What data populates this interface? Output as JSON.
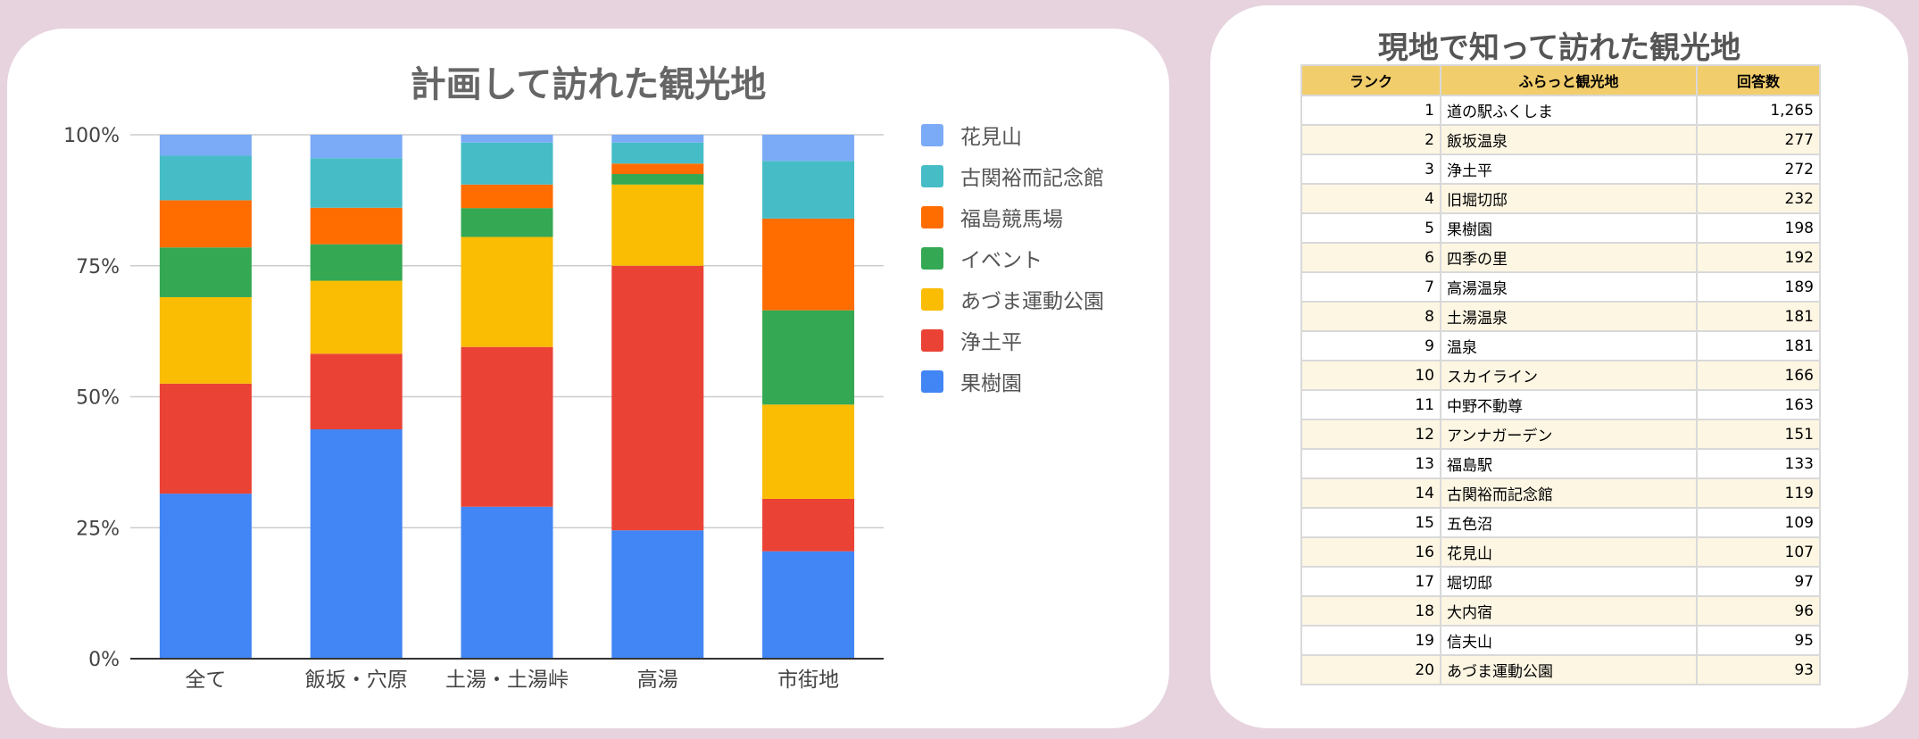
{
  "chart_data": [
    {
      "type": "bar",
      "stacked": true,
      "percent": true,
      "title": "計画して訪れた観光地",
      "categories": [
        "全て",
        "飯坂・穴原",
        "土湯・土湯峠",
        "高湯",
        "市街地"
      ],
      "yticks": [
        "0%",
        "25%",
        "50%",
        "75%",
        "100%"
      ],
      "ylim": [
        0,
        100
      ],
      "grid": true,
      "legend_position": "right",
      "series": [
        {
          "name": "果樹園",
          "color": "#4285f4",
          "values": [
            31.5,
            44,
            29,
            24.5,
            20.5
          ]
        },
        {
          "name": "浄土平",
          "color": "#ea4335",
          "values": [
            21,
            14.5,
            30.5,
            50.5,
            10
          ]
        },
        {
          "name": "あづま運動公園",
          "color": "#fbbc04",
          "values": [
            16.5,
            14,
            21,
            15.5,
            18
          ]
        },
        {
          "name": "イベント",
          "color": "#34a853",
          "values": [
            9.5,
            7,
            5.5,
            2,
            18
          ]
        },
        {
          "name": "福島競馬場",
          "color": "#ff6d01",
          "values": [
            9,
            7,
            4.5,
            2,
            17.5
          ]
        },
        {
          "name": "古関裕而記念館",
          "color": "#46bdc6",
          "values": [
            8.5,
            9.5,
            8,
            4,
            11
          ]
        },
        {
          "name": "花見山",
          "color": "#7baaf7",
          "values": [
            4,
            4.5,
            1.5,
            1.5,
            5
          ]
        }
      ]
    },
    {
      "type": "table",
      "title": "現地で知って訪れた観光地",
      "columns": [
        "ランク",
        "ふらっと観光地",
        "回答数"
      ],
      "rows": [
        {
          "rank": "1",
          "name": "道の駅ふくしま",
          "count": "1,265"
        },
        {
          "rank": "2",
          "name": "飯坂温泉",
          "count": "277"
        },
        {
          "rank": "3",
          "name": "浄土平",
          "count": "272"
        },
        {
          "rank": "4",
          "name": "旧堀切邸",
          "count": "232"
        },
        {
          "rank": "5",
          "name": "果樹園",
          "count": "198"
        },
        {
          "rank": "6",
          "name": "四季の里",
          "count": "192"
        },
        {
          "rank": "7",
          "name": "高湯温泉",
          "count": "189"
        },
        {
          "rank": "8",
          "name": "土湯温泉",
          "count": "181"
        },
        {
          "rank": "9",
          "name": "温泉",
          "count": "181"
        },
        {
          "rank": "10",
          "name": "スカイライン",
          "count": "166"
        },
        {
          "rank": "11",
          "name": "中野不動尊",
          "count": "163"
        },
        {
          "rank": "12",
          "name": "アンナガーデン",
          "count": "151"
        },
        {
          "rank": "13",
          "name": "福島駅",
          "count": "133"
        },
        {
          "rank": "14",
          "name": "古関裕而記念館",
          "count": "119"
        },
        {
          "rank": "15",
          "name": "五色沼",
          "count": "109"
        },
        {
          "rank": "16",
          "name": "花見山",
          "count": "107"
        },
        {
          "rank": "17",
          "name": "堀切邸",
          "count": "97"
        },
        {
          "rank": "18",
          "name": "大内宿",
          "count": "96"
        },
        {
          "rank": "19",
          "name": "信夫山",
          "count": "95"
        },
        {
          "rank": "20",
          "name": "あづま運動公園",
          "count": "93"
        }
      ]
    }
  ],
  "colors": {
    "background": "#e6d3de",
    "card": "#ffffff",
    "table_header": "#f1cd6c",
    "table_stripe": "#fdf6e3",
    "title_text": "#666666"
  }
}
